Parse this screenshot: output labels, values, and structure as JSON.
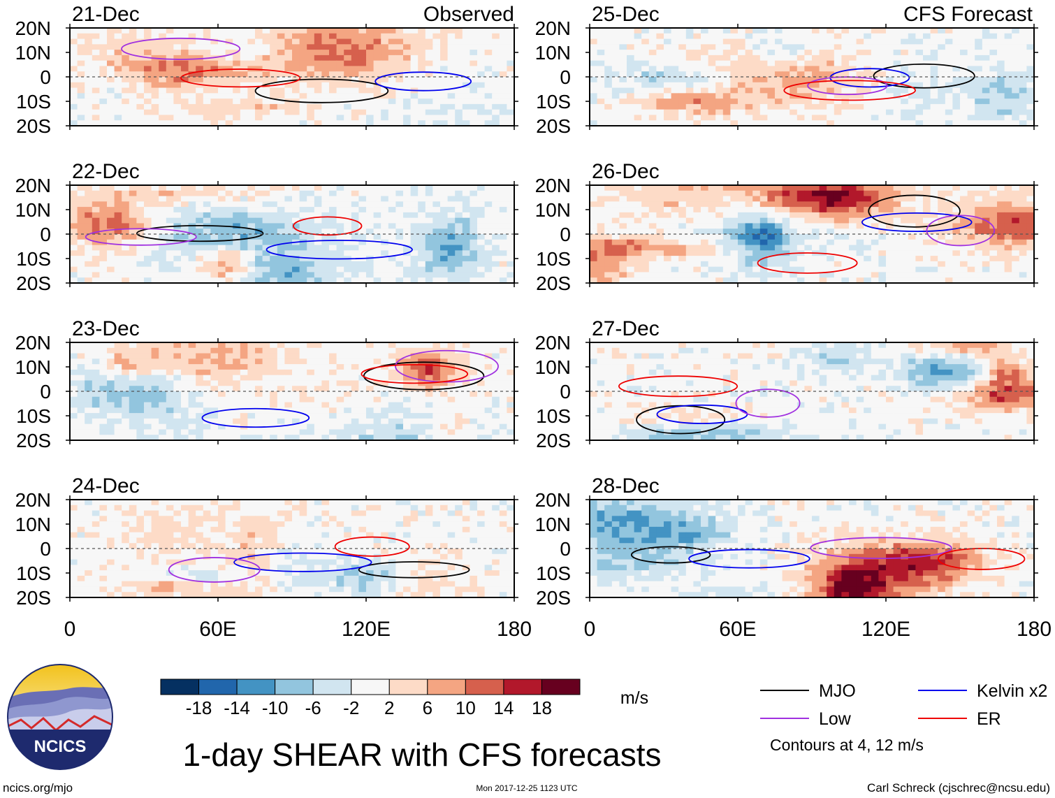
{
  "title": "1-day SHEAR with CFS forecasts",
  "left_column_label": "Observed",
  "right_column_label": "CFS Forecast",
  "credits": {
    "url": "ncics.org/mjo",
    "timestamp": "Mon 2017-12-25 1123 UTC",
    "author": "Carl Schreck (cjschrec@ncsu.edu)",
    "logo_text": "NCICS"
  },
  "chart_data": {
    "type": "heatmap",
    "variable": "SHEAR",
    "units": "m/s",
    "xlim": [
      0,
      180
    ],
    "ylim": [
      -20,
      20
    ],
    "x_ticks": [
      {
        "value": 0,
        "label": "0"
      },
      {
        "value": 60,
        "label": "60E"
      },
      {
        "value": 120,
        "label": "120E"
      },
      {
        "value": 180,
        "label": "180"
      }
    ],
    "y_ticks": [
      {
        "value": 20,
        "label": "20N"
      },
      {
        "value": 10,
        "label": "10N"
      },
      {
        "value": 0,
        "label": "0"
      },
      {
        "value": -10,
        "label": "10S"
      },
      {
        "value": -20,
        "label": "20S"
      }
    ],
    "panels": [
      {
        "date": "21-Dec",
        "source": "Observed",
        "seed": 3
      },
      {
        "date": "22-Dec",
        "source": "Observed",
        "seed": 7
      },
      {
        "date": "23-Dec",
        "source": "Observed",
        "seed": 11
      },
      {
        "date": "24-Dec",
        "source": "Observed",
        "seed": 17
      },
      {
        "date": "25-Dec",
        "source": "CFS Forecast",
        "seed": 23
      },
      {
        "date": "26-Dec",
        "source": "CFS Forecast",
        "seed": 29
      },
      {
        "date": "27-Dec",
        "source": "CFS Forecast",
        "seed": 31
      },
      {
        "date": "28-Dec",
        "source": "CFS Forecast",
        "seed": 37
      }
    ],
    "colorbar": {
      "levels": [
        -18,
        -14,
        -10,
        -6,
        -2,
        2,
        6,
        10,
        14,
        18
      ],
      "level_labels": [
        "-18",
        "-14",
        "-10",
        "-6",
        "-2",
        "2",
        "6",
        "10",
        "14",
        "18"
      ],
      "colors": [
        "#053061",
        "#2166ac",
        "#4393c3",
        "#92c5de",
        "#d1e5f0",
        "#f7f7f7",
        "#fddbc7",
        "#f4a582",
        "#d6604d",
        "#b2182b",
        "#67001f"
      ]
    },
    "legend": {
      "entries": [
        {
          "label": "MJO",
          "color": "#000000"
        },
        {
          "label": "Kelvin x2",
          "color": "#0000ee"
        },
        {
          "label": "Low",
          "color": "#a030e0"
        },
        {
          "label": "ER",
          "color": "#ee0000"
        }
      ],
      "note": "Contours at 4, 12 m/s"
    }
  }
}
